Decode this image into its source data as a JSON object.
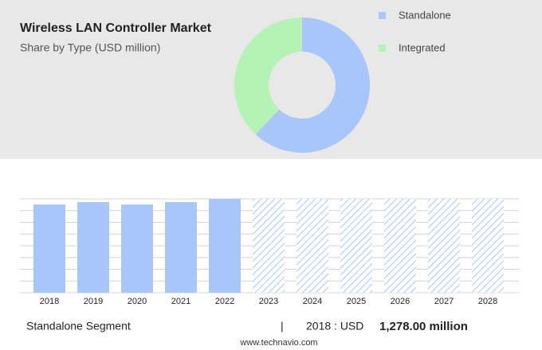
{
  "chart_data": [
    {
      "type": "pie",
      "title": "Wireless LAN Controller Market",
      "subtitle": "Share by Type (USD million)",
      "categories": [
        "Standalone",
        "Integrated"
      ],
      "values": [
        62,
        38
      ],
      "colors": [
        "#a9c6fb",
        "#b5f2b6"
      ],
      "donut": true
    },
    {
      "type": "bar",
      "categories": [
        "2018",
        "2019",
        "2020",
        "2021",
        "2022",
        "2023",
        "2024",
        "2025",
        "2026",
        "2027",
        "2028"
      ],
      "values": [
        1278,
        1313,
        1278,
        1313,
        1359,
        1359,
        1359,
        1359,
        1359,
        1359,
        1359
      ],
      "hatch": [
        false,
        false,
        false,
        false,
        false,
        true,
        true,
        true,
        true,
        true,
        true
      ],
      "color": "#a9c6fb",
      "ylim": [
        0,
        1360
      ],
      "yticks": [
        0,
        170,
        340,
        510,
        680,
        850,
        1020,
        1190,
        1360
      ],
      "grid": true
    }
  ],
  "footer": {
    "segment": "Standalone Segment",
    "separator": "|",
    "period": "2018 : USD",
    "amount": "1,278.00 million",
    "source": "www.technavio.com"
  }
}
